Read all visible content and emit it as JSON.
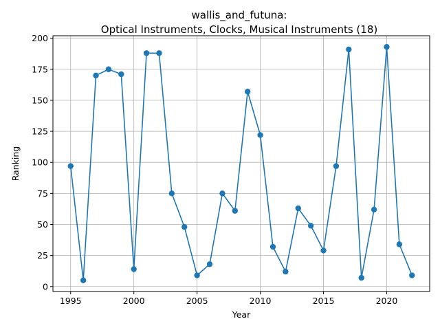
{
  "chart_data": {
    "type": "line",
    "title_line1": "wallis_and_futuna:",
    "title_line2": "Optical Instruments, Clocks, Musical Instruments (18)",
    "xlabel": "Year",
    "ylabel": "Ranking",
    "xlim": [
      1993.6,
      2023.4
    ],
    "ylim": [
      -4,
      202
    ],
    "xticks": [
      1995,
      2000,
      2005,
      2010,
      2015,
      2020
    ],
    "yticks": [
      0,
      25,
      50,
      75,
      100,
      125,
      150,
      175,
      200
    ],
    "grid": true,
    "color": "#1f77b4",
    "series": [
      {
        "x": [
          1995,
          1996,
          1997,
          1998,
          1999,
          2000,
          2001,
          2002,
          2003,
          2004,
          2005,
          2006,
          2007,
          2008,
          2009,
          2010,
          2011,
          2012,
          2013,
          2014,
          2015,
          2016,
          2017,
          2018,
          2019,
          2020,
          2021,
          2022
        ],
        "values": [
          97,
          5,
          170,
          175,
          171,
          14,
          188,
          188,
          75,
          48,
          9,
          18,
          75,
          61,
          157,
          122,
          32,
          12,
          63,
          49,
          29,
          97,
          191,
          7,
          62,
          193,
          34,
          9
        ]
      }
    ]
  }
}
